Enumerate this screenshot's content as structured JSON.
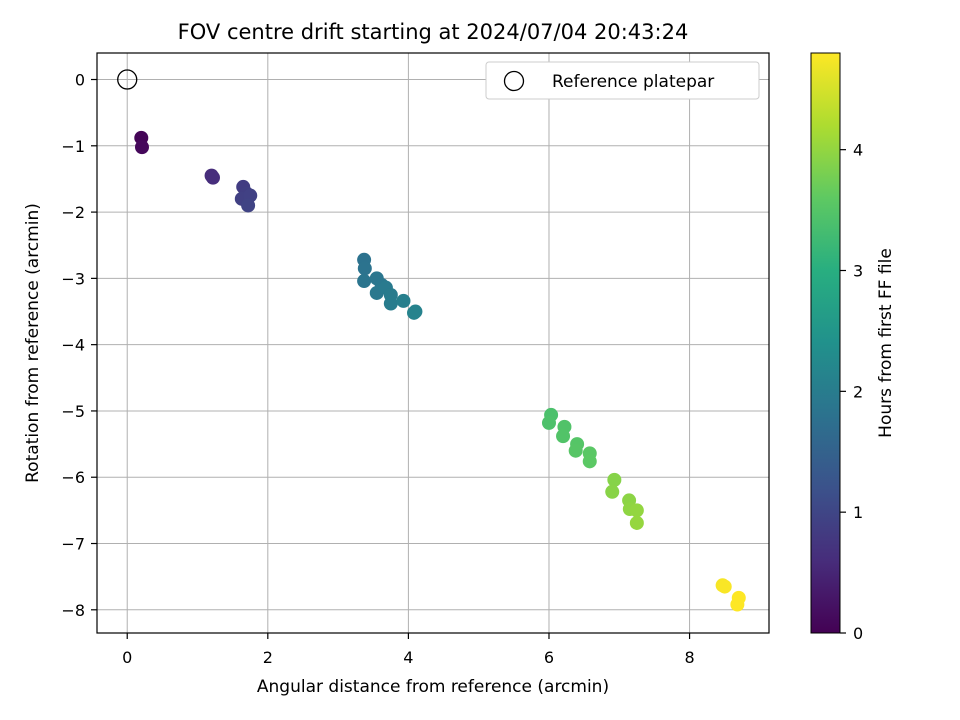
{
  "chart_data": {
    "type": "scatter",
    "title": "FOV centre drift starting at 2024/07/04 20:43:24",
    "xlabel": "Angular distance from reference (arcmin)",
    "ylabel": "Rotation from reference (arcmin)",
    "xlim": [
      -0.43,
      9.13
    ],
    "ylim": [
      -8.35,
      0.4
    ],
    "xticks": [
      0,
      2,
      4,
      6,
      8
    ],
    "yticks": [
      0,
      -1,
      -2,
      -3,
      -4,
      -5,
      -6,
      -7,
      -8
    ],
    "grid": true,
    "legend": {
      "placement": "top-right",
      "entries": [
        "Reference platepar"
      ]
    },
    "reference_point": {
      "name": "Reference platepar",
      "x": 0.0,
      "y": 0.0
    },
    "colorbar": {
      "label": "Hours from first FF file",
      "range": [
        0,
        4.8
      ],
      "ticks": [
        0,
        1,
        2,
        3,
        4
      ],
      "colormap": "viridis"
    },
    "series": [
      {
        "points": [
          {
            "x": 0.2,
            "y": -0.88,
            "c": 0.05
          },
          {
            "x": 0.21,
            "y": -1.02,
            "c": 0.1
          },
          {
            "x": 1.2,
            "y": -1.45,
            "c": 0.6
          },
          {
            "x": 1.22,
            "y": -1.48,
            "c": 0.62
          },
          {
            "x": 1.65,
            "y": -1.62,
            "c": 0.85
          },
          {
            "x": 1.7,
            "y": -1.72,
            "c": 0.88
          },
          {
            "x": 1.63,
            "y": -1.8,
            "c": 0.9
          },
          {
            "x": 1.75,
            "y": -1.75,
            "c": 0.92
          },
          {
            "x": 1.72,
            "y": -1.9,
            "c": 0.95
          },
          {
            "x": 3.37,
            "y": -2.72,
            "c": 1.8
          },
          {
            "x": 3.38,
            "y": -2.85,
            "c": 1.82
          },
          {
            "x": 3.37,
            "y": -3.04,
            "c": 1.85
          },
          {
            "x": 3.55,
            "y": -3.0,
            "c": 1.87
          },
          {
            "x": 3.62,
            "y": -3.1,
            "c": 1.9
          },
          {
            "x": 3.55,
            "y": -3.22,
            "c": 1.92
          },
          {
            "x": 3.68,
            "y": -3.14,
            "c": 1.95
          },
          {
            "x": 3.75,
            "y": -3.25,
            "c": 1.97
          },
          {
            "x": 3.75,
            "y": -3.38,
            "c": 2.0
          },
          {
            "x": 3.93,
            "y": -3.34,
            "c": 2.05
          },
          {
            "x": 4.1,
            "y": -3.5,
            "c": 2.1
          },
          {
            "x": 4.08,
            "y": -3.52,
            "c": 2.12
          },
          {
            "x": 6.03,
            "y": -5.06,
            "c": 3.4
          },
          {
            "x": 6.0,
            "y": -5.18,
            "c": 3.42
          },
          {
            "x": 6.22,
            "y": -5.24,
            "c": 3.45
          },
          {
            "x": 6.2,
            "y": -5.38,
            "c": 3.47
          },
          {
            "x": 6.4,
            "y": -5.5,
            "c": 3.5
          },
          {
            "x": 6.38,
            "y": -5.6,
            "c": 3.52
          },
          {
            "x": 6.58,
            "y": -5.64,
            "c": 3.55
          },
          {
            "x": 6.58,
            "y": -5.76,
            "c": 3.57
          },
          {
            "x": 6.93,
            "y": -6.04,
            "c": 3.9
          },
          {
            "x": 6.9,
            "y": -6.22,
            "c": 3.92
          },
          {
            "x": 7.14,
            "y": -6.35,
            "c": 3.95
          },
          {
            "x": 7.15,
            "y": -6.48,
            "c": 3.97
          },
          {
            "x": 7.25,
            "y": -6.5,
            "c": 4.0
          },
          {
            "x": 7.25,
            "y": -6.69,
            "c": 4.02
          },
          {
            "x": 8.47,
            "y": -7.63,
            "c": 4.75
          },
          {
            "x": 8.5,
            "y": -7.65,
            "c": 4.77
          },
          {
            "x": 8.7,
            "y": -7.82,
            "c": 4.8
          },
          {
            "x": 8.68,
            "y": -7.92,
            "c": 4.8
          }
        ]
      }
    ]
  }
}
